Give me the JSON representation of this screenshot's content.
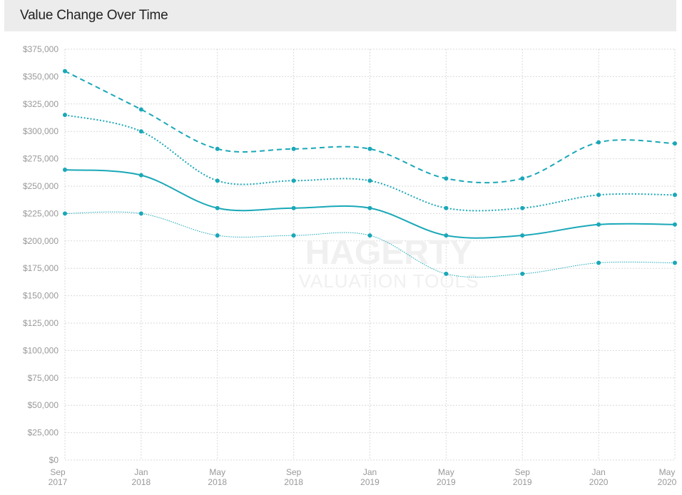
{
  "header": {
    "title": "Value Change Over Time"
  },
  "watermark": {
    "line1": "HAGERTY",
    "line2": "VALUATION TOOLS"
  },
  "colors": {
    "series": "#1aa8b8",
    "grid": "#d9d9d9",
    "tick_text": "#999999",
    "header_bg": "#ececec"
  },
  "chart_data": {
    "type": "line",
    "title": "Value Change Over Time",
    "x": [
      [
        "Sep",
        "2017"
      ],
      [
        "Jan",
        "2018"
      ],
      [
        "May",
        "2018"
      ],
      [
        "Sep",
        "2018"
      ],
      [
        "Jan",
        "2019"
      ],
      [
        "May",
        "2019"
      ],
      [
        "Sep",
        "2019"
      ],
      [
        "Jan",
        "2020"
      ],
      [
        "May",
        "2020"
      ]
    ],
    "y_tick_labels": [
      "$0",
      "$25,000",
      "$50,000",
      "$75,000",
      "$100,000",
      "$125,000",
      "$150,000",
      "$175,000",
      "$200,000",
      "$225,000",
      "$250,000",
      "$275,000",
      "$300,000",
      "$325,000",
      "$350,000",
      "$375,000"
    ],
    "ylim": [
      0,
      375000
    ],
    "grid": true,
    "legend": "none",
    "series": [
      {
        "style": "dashed",
        "values": [
          355000,
          320000,
          284000,
          284000,
          284000,
          257000,
          257000,
          290000,
          289000
        ]
      },
      {
        "style": "dotted",
        "values": [
          315000,
          300000,
          255000,
          255000,
          255000,
          230000,
          230000,
          242000,
          242000
        ]
      },
      {
        "style": "solid",
        "values": [
          265000,
          260000,
          230000,
          230000,
          230000,
          205000,
          205000,
          215000,
          215000
        ]
      },
      {
        "style": "thin-dotted",
        "values": [
          225000,
          225000,
          205000,
          205000,
          205000,
          170000,
          170000,
          180000,
          180000
        ]
      }
    ]
  }
}
